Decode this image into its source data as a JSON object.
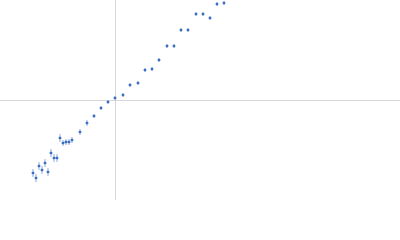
{
  "chart_data": {
    "type": "scatter",
    "x": [
      -82,
      -79,
      -76,
      -73,
      -70,
      -67,
      -64,
      -61,
      -58,
      -55,
      -52,
      -49,
      -46,
      -43,
      -35,
      -28,
      -21,
      -14,
      -7,
      0,
      8,
      15,
      23,
      30,
      37,
      44,
      52,
      59,
      66,
      73,
      81,
      88,
      95,
      102,
      109
    ],
    "series": [
      {
        "color": "#3a6fc4",
        "values": [
          -73,
          -78,
          -66,
          -70,
          -63,
          -72,
          -53,
          -58,
          -58,
          -38,
          -43,
          -42,
          -42,
          -40,
          -32,
          -23,
          -16,
          -8,
          -2,
          2,
          5,
          15,
          17,
          30,
          31,
          40,
          54,
          54,
          70,
          70,
          86,
          86,
          82,
          96,
          97
        ],
        "errors": [
          4,
          4,
          4,
          4,
          4,
          4,
          4,
          4,
          4,
          4,
          3,
          3,
          3,
          3,
          3,
          3,
          2,
          2,
          2,
          2,
          2,
          2,
          2,
          2,
          2,
          2,
          2,
          2,
          2,
          2,
          2,
          2,
          2,
          2,
          2
        ]
      }
    ],
    "xlim": [
      -115,
      285
    ],
    "ylim": [
      -100,
      100
    ]
  }
}
